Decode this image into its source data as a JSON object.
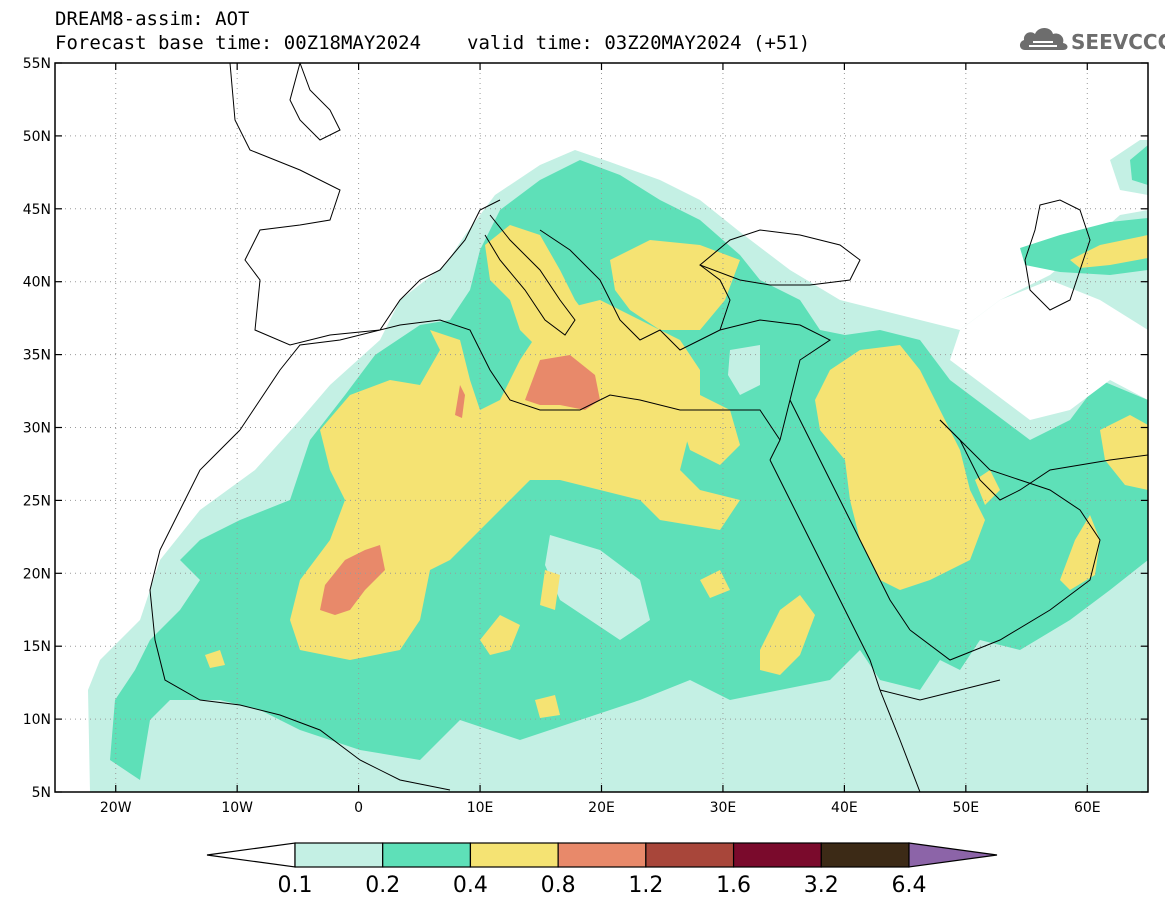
{
  "header": {
    "line1": "DREAM8-assim: AOT",
    "base_time": "Forecast base time: 00Z18MAY2024",
    "valid_time": "valid time: 03Z20MAY2024 (+51)"
  },
  "logo": {
    "text": "SEEVCCC",
    "icon": "cloud-icon"
  },
  "map": {
    "lon_range": [
      -25,
      65
    ],
    "lat_range": [
      5,
      55
    ],
    "lon_ticks": [
      {
        "value": -20,
        "label": "20W"
      },
      {
        "value": -10,
        "label": "10W"
      },
      {
        "value": 0,
        "label": "0"
      },
      {
        "value": 10,
        "label": "10E"
      },
      {
        "value": 20,
        "label": "20E"
      },
      {
        "value": 30,
        "label": "30E"
      },
      {
        "value": 40,
        "label": "40E"
      },
      {
        "value": 50,
        "label": "50E"
      },
      {
        "value": 60,
        "label": "60E"
      }
    ],
    "lat_ticks": [
      {
        "value": 5,
        "label": "5N"
      },
      {
        "value": 10,
        "label": "10N"
      },
      {
        "value": 15,
        "label": "15N"
      },
      {
        "value": 20,
        "label": "20N"
      },
      {
        "value": 25,
        "label": "25N"
      },
      {
        "value": 30,
        "label": "30N"
      },
      {
        "value": 35,
        "label": "35N"
      },
      {
        "value": 40,
        "label": "40N"
      },
      {
        "value": 45,
        "label": "45N"
      },
      {
        "value": 50,
        "label": "50N"
      },
      {
        "value": 55,
        "label": "55N"
      }
    ],
    "grid": true
  },
  "colorbar": {
    "levels": [
      "0.1",
      "0.2",
      "0.4",
      "0.8",
      "1.2",
      "1.6",
      "3.2",
      "6.4"
    ],
    "colors": [
      "#ffffff",
      "#c4f0e4",
      "#5ee0b8",
      "#f5e373",
      "#e8896a",
      "#a8463a",
      "#7a0a2c",
      "#3c2a16",
      "#8c64a8"
    ]
  }
}
